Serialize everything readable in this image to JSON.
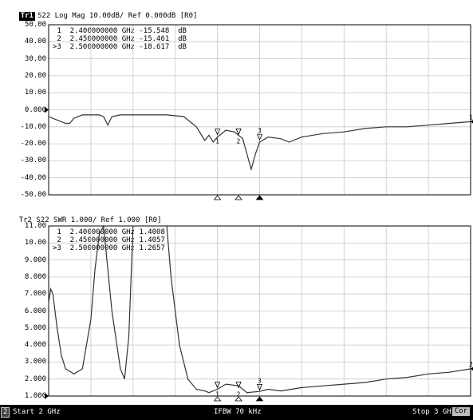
{
  "trace1": {
    "tag": "Tr1",
    "header": "S22 Log Mag 10.00dB/ Ref 0.000dB [R0]",
    "y_ticks": [
      "50.00",
      "40.00",
      "30.00",
      "20.00",
      "10.00",
      "0.000",
      "-10.00",
      "-20.00",
      "-30.00",
      "-40.00",
      "-50.00"
    ],
    "markers": [
      {
        "num": "1",
        "freq": "2.400000000",
        "unit": "GHz",
        "value": "-15.548",
        "vunit": "dB"
      },
      {
        "num": "2",
        "freq": "2.450000000",
        "unit": "GHz",
        "value": "-15.461",
        "vunit": "dB"
      },
      {
        "num": ">3",
        "freq": "2.500000000",
        "unit": "GHz",
        "value": "-18.617",
        "vunit": "dB"
      }
    ],
    "end_label": "1",
    "marker_labels": [
      "1",
      "2",
      "3"
    ]
  },
  "trace2": {
    "tag": "Tr2",
    "header": "S22 SWR 1.000/ Ref 1.000 [R0]",
    "y_ticks": [
      "11.00",
      "10.00",
      "9.000",
      "8.000",
      "7.000",
      "6.000",
      "5.000",
      "4.000",
      "3.000",
      "2.000",
      "1.000"
    ],
    "markers": [
      {
        "num": "1",
        "freq": "2.400000000",
        "unit": "GHz",
        "value": "1.4008"
      },
      {
        "num": "2",
        "freq": "2.450000000",
        "unit": "GHz",
        "value": "1.4057"
      },
      {
        "num": ">3",
        "freq": "2.500000000",
        "unit": "GHz",
        "value": "1.2657"
      }
    ],
    "end_label": "2",
    "marker_labels": [
      "1",
      "2",
      "3"
    ]
  },
  "status": {
    "channel": "2",
    "start": "Start 2 GHz",
    "ifbw": "IFBW 70 kHz",
    "stop": "Stop 3 GHz",
    "cor": "Cor"
  },
  "colors": {
    "trace": "#333333",
    "grid": "#c8c8c8",
    "statusbar": "#000000"
  },
  "chart_data": [
    {
      "type": "line",
      "title": "S22 Log Mag 10.00dB/ Ref 0.000dB [R0]",
      "xlim": [
        2.0,
        3.0
      ],
      "ylim": [
        -50,
        50
      ],
      "grid": true,
      "series": [
        {
          "values": [
            [
              2.0,
              -4
            ],
            [
              2.02,
              -6
            ],
            [
              2.04,
              -8
            ],
            [
              2.05,
              -8
            ],
            [
              2.06,
              -5
            ],
            [
              2.08,
              -3
            ],
            [
              2.1,
              -3
            ],
            [
              2.12,
              -3
            ],
            [
              2.13,
              -4
            ],
            [
              2.14,
              -9
            ],
            [
              2.15,
              -4
            ],
            [
              2.17,
              -3
            ],
            [
              2.2,
              -3
            ],
            [
              2.24,
              -3
            ],
            [
              2.28,
              -3
            ],
            [
              2.32,
              -4
            ],
            [
              2.35,
              -10
            ],
            [
              2.37,
              -18
            ],
            [
              2.38,
              -15
            ],
            [
              2.39,
              -19
            ],
            [
              2.4,
              -16
            ],
            [
              2.42,
              -12
            ],
            [
              2.44,
              -13
            ],
            [
              2.45,
              -15
            ],
            [
              2.46,
              -17
            ],
            [
              2.47,
              -26
            ],
            [
              2.48,
              -35
            ],
            [
              2.49,
              -26
            ],
            [
              2.5,
              -19
            ],
            [
              2.52,
              -16
            ],
            [
              2.55,
              -17
            ],
            [
              2.57,
              -19
            ],
            [
              2.6,
              -16
            ],
            [
              2.65,
              -14
            ],
            [
              2.7,
              -13
            ],
            [
              2.75,
              -11
            ],
            [
              2.8,
              -10
            ],
            [
              2.85,
              -10
            ],
            [
              2.9,
              -9
            ],
            [
              2.95,
              -8
            ],
            [
              3.0,
              -7
            ]
          ]
        }
      ],
      "markers": [
        {
          "x": 2.4,
          "y": -15.548
        },
        {
          "x": 2.45,
          "y": -15.461
        },
        {
          "x": 2.5,
          "y": -18.617
        }
      ]
    },
    {
      "type": "line",
      "title": "S22 SWR 1.000/ Ref 1.000 [R0]",
      "xlim": [
        2.0,
        3.0
      ],
      "ylim": [
        1,
        11
      ],
      "grid": true,
      "series": [
        {
          "values": [
            [
              2.0,
              6.5
            ],
            [
              2.005,
              7.3
            ],
            [
              2.01,
              7.0
            ],
            [
              2.02,
              5.0
            ],
            [
              2.03,
              3.4
            ],
            [
              2.04,
              2.6
            ],
            [
              2.06,
              2.3
            ],
            [
              2.08,
              2.6
            ],
            [
              2.1,
              5.5
            ],
            [
              2.11,
              8.5
            ],
            [
              2.12,
              10.5
            ],
            [
              2.13,
              11
            ],
            [
              2.14,
              8.5
            ],
            [
              2.15,
              6.0
            ],
            [
              2.17,
              2.6
            ],
            [
              2.18,
              2.0
            ],
            [
              2.19,
              4.5
            ],
            [
              2.2,
              11
            ],
            [
              2.24,
              11
            ],
            [
              2.26,
              11
            ],
            [
              2.28,
              11
            ],
            [
              2.29,
              8.0
            ],
            [
              2.31,
              4.0
            ],
            [
              2.33,
              2.0
            ],
            [
              2.35,
              1.4
            ],
            [
              2.37,
              1.3
            ],
            [
              2.38,
              1.2
            ],
            [
              2.4,
              1.4
            ],
            [
              2.42,
              1.7
            ],
            [
              2.45,
              1.6
            ],
            [
              2.47,
              1.2
            ],
            [
              2.5,
              1.27
            ],
            [
              2.52,
              1.4
            ],
            [
              2.55,
              1.3
            ],
            [
              2.6,
              1.5
            ],
            [
              2.7,
              1.7
            ],
            [
              2.75,
              1.8
            ],
            [
              2.8,
              2.0
            ],
            [
              2.85,
              2.1
            ],
            [
              2.9,
              2.3
            ],
            [
              2.95,
              2.4
            ],
            [
              3.0,
              2.6
            ]
          ]
        }
      ],
      "markers": [
        {
          "x": 2.4,
          "y": 1.4008
        },
        {
          "x": 2.45,
          "y": 1.4057
        },
        {
          "x": 2.5,
          "y": 1.2657
        }
      ]
    }
  ]
}
